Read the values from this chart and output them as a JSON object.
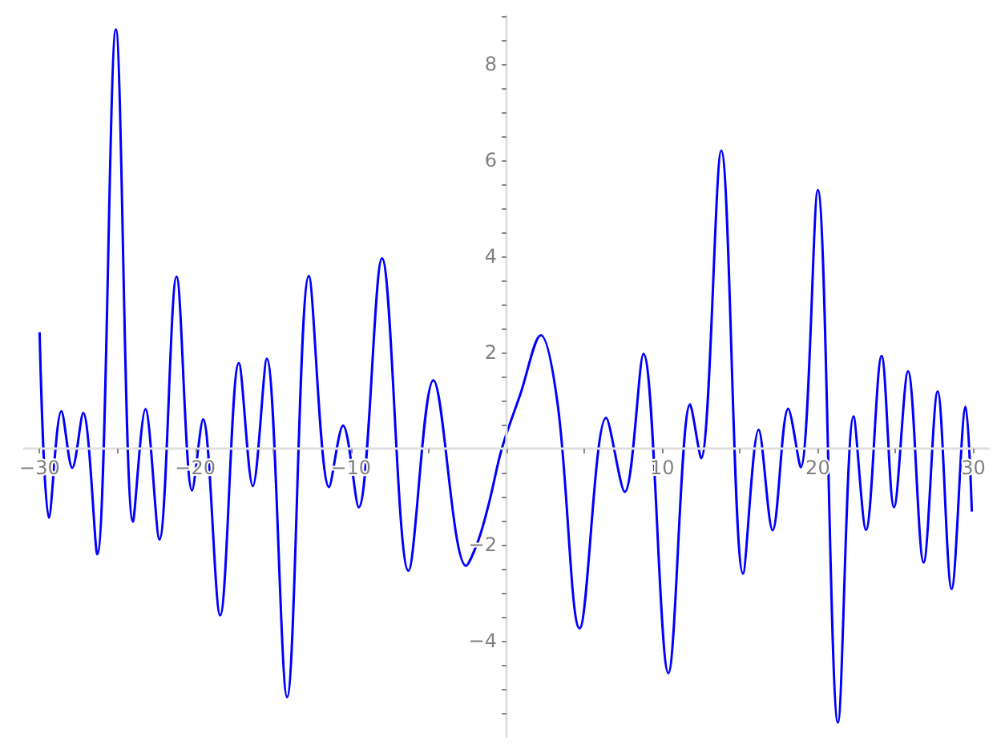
{
  "chart_data": {
    "type": "line",
    "x": [
      -30.0,
      -29.4,
      -28.6,
      -27.9,
      -27.2,
      -26.3,
      -25.1,
      -24.0,
      -23.2,
      -22.3,
      -21.2,
      -20.2,
      -19.5,
      -18.4,
      -17.2,
      -16.3,
      -15.4,
      -14.1,
      -12.7,
      -11.4,
      -10.5,
      -9.5,
      -8.0,
      -6.3,
      -4.7,
      -2.6,
      -1.8,
      -1.1,
      -0.3,
      0.9,
      2.2,
      3.3,
      4.7,
      6.4,
      7.6,
      8.8,
      10.4,
      11.8,
      12.5,
      13.8,
      15.2,
      16.2,
      17.1,
      18.1,
      18.9,
      20.0,
      21.3,
      22.3,
      23.1,
      24.1,
      24.9,
      25.8,
      26.8,
      27.7,
      28.6,
      29.5,
      29.9
    ],
    "series": [
      {
        "color": "#0000ff",
        "values": [
          2.42,
          -1.44,
          0.78,
          -0.4,
          0.74,
          -2.2,
          8.72,
          -1.52,
          0.82,
          -1.89,
          3.58,
          -0.87,
          0.61,
          -3.47,
          1.78,
          -0.78,
          1.87,
          -5.17,
          3.59,
          -0.8,
          0.48,
          -1.22,
          3.96,
          -2.54,
          1.42,
          -2.44,
          -1.9,
          -1.1,
          0,
          1.14,
          2.36,
          0.89,
          -3.74,
          0.64,
          -0.9,
          1.97,
          -4.67,
          0.92,
          -0.2,
          6.2,
          -2.6,
          0.39,
          -1.7,
          0.83,
          -0.39,
          5.38,
          -5.7,
          0.67,
          -1.69,
          1.93,
          -1.22,
          1.61,
          -2.37,
          1.19,
          -2.92,
          0.87,
          -1.31
        ]
      }
    ],
    "xlim": [
      -31,
      31
    ],
    "ylim": [
      -6,
      9
    ],
    "xticks": [
      {
        "value": -30,
        "label": "−30"
      },
      {
        "value": -25,
        "label": null
      },
      {
        "value": -20,
        "label": "−20"
      },
      {
        "value": -15,
        "label": null
      },
      {
        "value": -10,
        "label": "−10"
      },
      {
        "value": -5,
        "label": null
      },
      {
        "value": 0,
        "label": null
      },
      {
        "value": 5,
        "label": null
      },
      10,
      {
        "value": 15,
        "label": null
      },
      20,
      {
        "value": 25,
        "label": null
      },
      30
    ],
    "yticks": [
      {
        "value": -5.5,
        "label": null
      },
      {
        "value": -5,
        "label": null
      },
      {
        "value": -4.5,
        "label": null
      },
      {
        "value": -4,
        "label": "−4"
      },
      {
        "value": -3.5,
        "label": null
      },
      {
        "value": -3,
        "label": null
      },
      {
        "value": -2.5,
        "label": null
      },
      {
        "value": -2,
        "label": "−2"
      },
      {
        "value": -1.5,
        "label": null
      },
      {
        "value": -1,
        "label": null
      },
      {
        "value": -0.5,
        "label": null
      },
      {
        "value": 0.5,
        "label": null
      },
      {
        "value": 1,
        "label": null
      },
      {
        "value": 1.5,
        "label": null
      },
      2,
      {
        "value": 2.5,
        "label": null
      },
      {
        "value": 3,
        "label": null
      },
      {
        "value": 3.5,
        "label": null
      },
      4,
      {
        "value": 4.5,
        "label": null
      },
      {
        "value": 5,
        "label": null
      },
      {
        "value": 5.5,
        "label": null
      },
      6,
      {
        "value": 6.5,
        "label": null
      },
      {
        "value": 7,
        "label": null
      },
      {
        "value": 7.5,
        "label": null
      },
      8,
      {
        "value": 8.5,
        "label": null
      },
      {
        "value": 9,
        "label": null
      }
    ],
    "grid": false,
    "marker": "none",
    "line_style": "solid"
  }
}
